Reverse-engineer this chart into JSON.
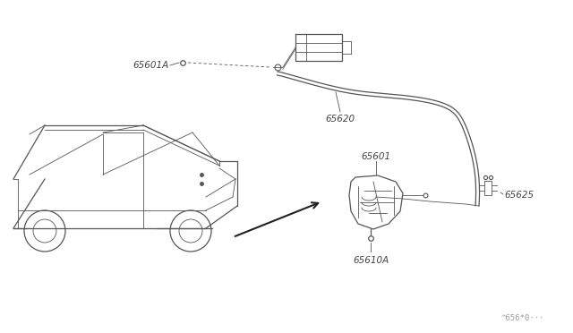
{
  "bg_color": "#ffffff",
  "line_color": "#555555",
  "label_color": "#444444",
  "watermark": "^656*0···",
  "parts": {
    "65601A_label": "65601A",
    "65620_label": "65620",
    "65601_label": "65601",
    "65610A_label": "65610A",
    "65625_label": "65625"
  },
  "figsize": [
    6.4,
    3.72
  ],
  "dpi": 100
}
